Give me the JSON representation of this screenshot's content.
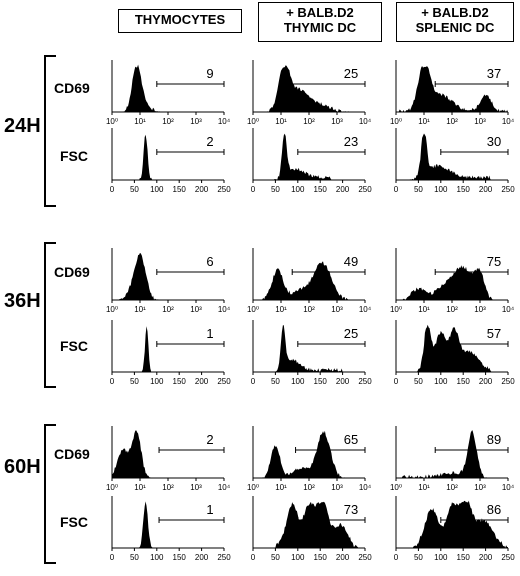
{
  "columns": [
    "THYMOCYTES",
    "+ BALB.D2\nTHYMIC DC",
    "+ BALB.D2\nSPLENIC DC"
  ],
  "row_labels": [
    "CD69",
    "FSC"
  ],
  "times": [
    "24H",
    "36H",
    "60H"
  ],
  "cd69_ticks": [
    "10⁰",
    "10¹",
    "10²",
    "10³",
    "10⁴"
  ],
  "fsc_ticks": [
    "0",
    "50",
    "100",
    "150",
    "200",
    "250"
  ],
  "percentages": {
    "24H": {
      "CD69": [
        "9",
        "25",
        "37"
      ],
      "FSC": [
        "2",
        "23",
        "30"
      ]
    },
    "36H": {
      "CD69": [
        "6",
        "49",
        "75"
      ],
      "FSC": [
        "1",
        "25",
        "57"
      ]
    },
    "60H": {
      "CD69": [
        "2",
        "65",
        "89"
      ],
      "FSC": [
        "1",
        "73",
        "86"
      ]
    }
  },
  "style": {
    "fill": "#000000",
    "background": "#ffffff"
  }
}
